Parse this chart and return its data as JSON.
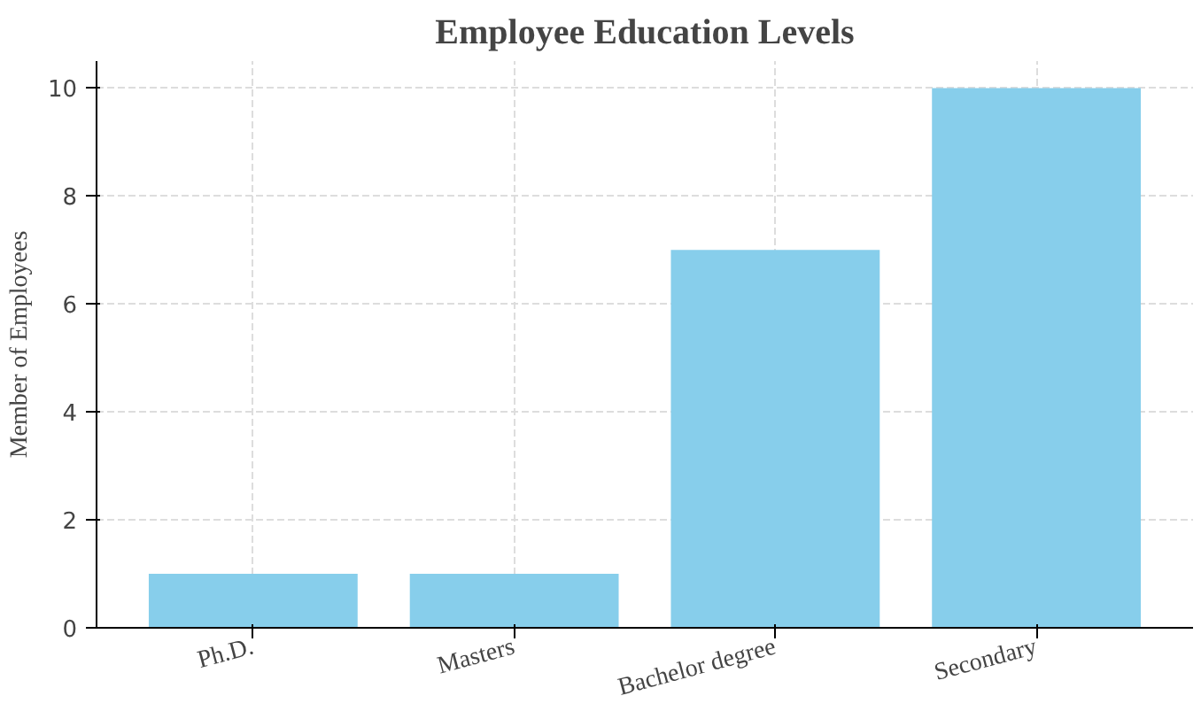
{
  "chart_data": {
    "type": "bar",
    "title": "Employee Education Levels",
    "ylabel": "Member of Employees",
    "categories": [
      "Ph.D.",
      "Masters",
      "Bachelor degree",
      "Secondary"
    ],
    "values": [
      1,
      1,
      7,
      10
    ],
    "color": "#87ceeb",
    "ylim": [
      0,
      10.5
    ],
    "yticks": [
      0,
      2,
      4,
      6,
      8,
      10
    ],
    "grid": true
  }
}
